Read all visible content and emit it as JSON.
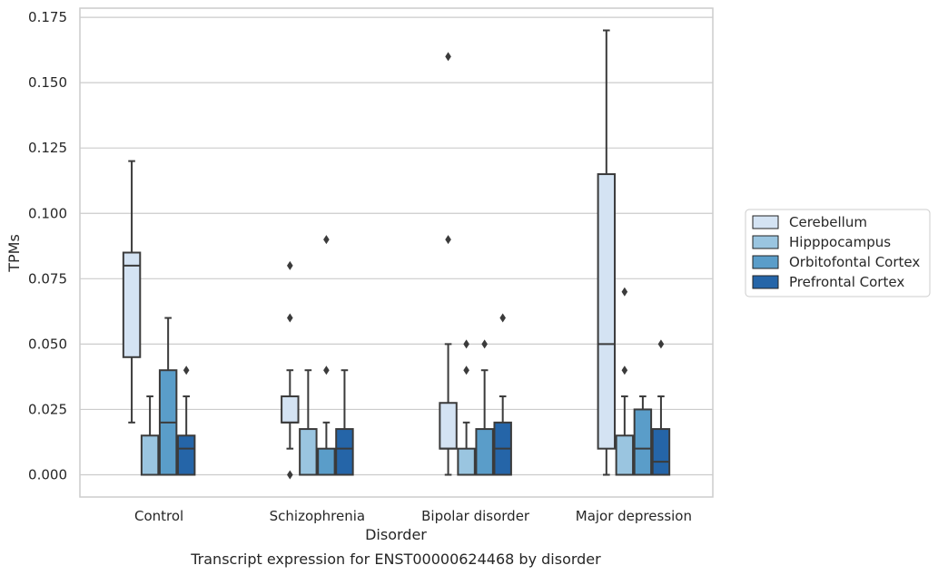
{
  "chart_data": {
    "type": "box",
    "title": "Transcript expression for ENST00000624468 by disorder",
    "xlabel": "Disorder",
    "ylabel": "TPMs",
    "ylim": [
      -0.0085,
      0.1785
    ],
    "yticks": [
      "0.000",
      "0.025",
      "0.050",
      "0.075",
      "0.100",
      "0.125",
      "0.150",
      "0.175"
    ],
    "ytick_values": [
      0,
      0.025,
      0.05,
      0.075,
      0.1,
      0.125,
      0.15,
      0.175
    ],
    "categories": [
      "Control",
      "Schizophrenia",
      "Bipolar disorder",
      "Major depression"
    ],
    "grid": "horizontal",
    "legend_position": "right",
    "series": [
      {
        "name": "Cerebellum",
        "color": "#d4e3f3",
        "boxes": [
          {
            "whislo": 0.02,
            "q1": 0.045,
            "med": 0.08,
            "q3": 0.085,
            "whishi": 0.12,
            "fliers": []
          },
          {
            "whislo": 0.01,
            "q1": 0.02,
            "med": 0.02,
            "q3": 0.03,
            "whishi": 0.04,
            "fliers": [
              0.0,
              0.06,
              0.08
            ]
          },
          {
            "whislo": 0.0,
            "q1": 0.01,
            "med": 0.01,
            "q3": 0.0275,
            "whishi": 0.05,
            "fliers": [
              0.09,
              0.16
            ]
          },
          {
            "whislo": 0.0,
            "q1": 0.01,
            "med": 0.05,
            "q3": 0.115,
            "whishi": 0.17,
            "fliers": []
          }
        ]
      },
      {
        "name": "Hipppocampus",
        "color": "#9ac5e0",
        "boxes": [
          {
            "whislo": 0.0,
            "q1": 0.0,
            "med": 0.0,
            "q3": 0.015,
            "whishi": 0.03,
            "fliers": []
          },
          {
            "whislo": 0.0,
            "q1": 0.0,
            "med": 0.0,
            "q3": 0.0175,
            "whishi": 0.04,
            "fliers": []
          },
          {
            "whislo": 0.0,
            "q1": 0.0,
            "med": 0.0,
            "q3": 0.01,
            "whishi": 0.02,
            "fliers": [
              0.04,
              0.05
            ]
          },
          {
            "whislo": 0.0,
            "q1": 0.0,
            "med": 0.0,
            "q3": 0.015,
            "whishi": 0.03,
            "fliers": [
              0.04,
              0.07
            ]
          }
        ]
      },
      {
        "name": "Orbitofontal Cortex",
        "color": "#5a9dc9",
        "boxes": [
          {
            "whislo": 0.0,
            "q1": 0.0,
            "med": 0.02,
            "q3": 0.04,
            "whishi": 0.06,
            "fliers": []
          },
          {
            "whislo": 0.0,
            "q1": 0.0,
            "med": 0.0,
            "q3": 0.01,
            "whishi": 0.02,
            "fliers": [
              0.04,
              0.09
            ]
          },
          {
            "whislo": 0.0,
            "q1": 0.0,
            "med": 0.0,
            "q3": 0.0175,
            "whishi": 0.04,
            "fliers": [
              0.05
            ]
          },
          {
            "whislo": 0.0,
            "q1": 0.0,
            "med": 0.01,
            "q3": 0.025,
            "whishi": 0.03,
            "fliers": []
          }
        ]
      },
      {
        "name": "Prefrontal Cortex",
        "color": "#2565a8",
        "boxes": [
          {
            "whislo": 0.0,
            "q1": 0.0,
            "med": 0.01,
            "q3": 0.015,
            "whishi": 0.03,
            "fliers": [
              0.04
            ]
          },
          {
            "whislo": 0.0,
            "q1": 0.0,
            "med": 0.01,
            "q3": 0.0175,
            "whishi": 0.04,
            "fliers": []
          },
          {
            "whislo": 0.0,
            "q1": 0.0,
            "med": 0.01,
            "q3": 0.02,
            "whishi": 0.03,
            "fliers": [
              0.06
            ]
          },
          {
            "whislo": 0.0,
            "q1": 0.0,
            "med": 0.005,
            "q3": 0.0175,
            "whishi": 0.03,
            "fliers": [
              0.05
            ]
          }
        ]
      }
    ]
  }
}
